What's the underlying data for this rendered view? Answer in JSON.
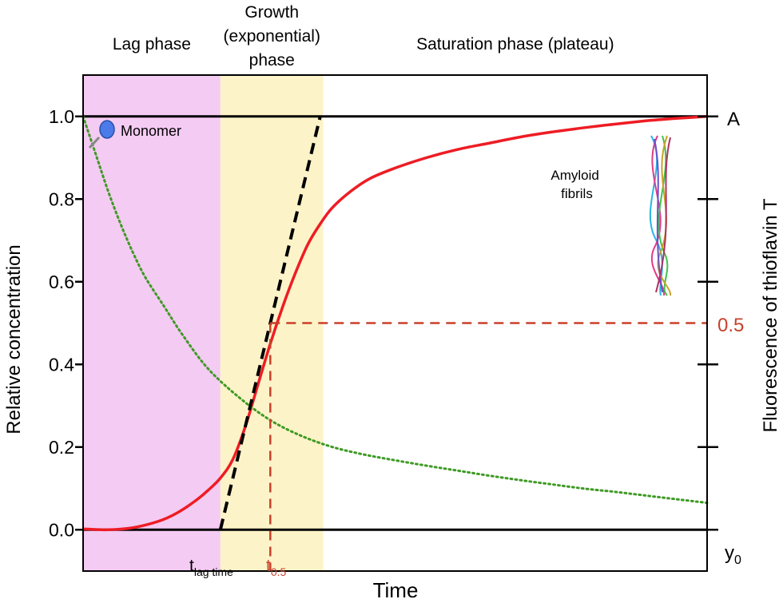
{
  "chart_data": {
    "type": "line",
    "phases": [
      {
        "name": "Lag phase",
        "lines": [
          "Lag phase"
        ],
        "x_range": [
          0.0,
          0.22
        ],
        "color": "#f4cbf3"
      },
      {
        "name": "Growth (exponential) phase",
        "lines": [
          "Growth",
          "(exponential)",
          "phase"
        ],
        "x_range": [
          0.22,
          0.385
        ],
        "color": "#fdf3c8"
      },
      {
        "name": "Saturation phase (plateau)",
        "lines": [
          "Saturation phase (plateau)"
        ],
        "x_range": [
          0.385,
          1.0
        ],
        "color": "#ffffff"
      }
    ],
    "xlabel": "Time",
    "ylabel": "Relative concentration",
    "ylabel_right": "Fluorescence of thioflavin T",
    "xlim": [
      0,
      1
    ],
    "ylim": [
      -0.1,
      1.1
    ],
    "yticks": [
      0.0,
      0.2,
      0.4,
      0.6,
      0.8,
      1.0
    ],
    "ytick_labels": [
      "0.0",
      "0.2",
      "0.4",
      "0.6",
      "0.8",
      "1.0"
    ],
    "right_tick_values": [
      0.0,
      0.2,
      0.4,
      0.6,
      0.8,
      1.0
    ],
    "right_labels": {
      "top": "A",
      "half": "0.5",
      "bottom_base": "y",
      "bottom_sub": "0"
    },
    "series": [
      {
        "name": "Amyloid fibrils",
        "style": "solid",
        "color": "#ee1c24",
        "x": [
          0.0,
          0.04,
          0.08,
          0.12,
          0.15,
          0.18,
          0.2,
          0.22,
          0.24,
          0.26,
          0.28,
          0.3,
          0.32,
          0.34,
          0.36,
          0.38,
          0.4,
          0.43,
          0.46,
          0.5,
          0.55,
          0.6,
          0.65,
          0.7,
          0.75,
          0.8,
          0.85,
          0.9,
          0.95,
          1.0
        ],
        "y": [
          0.002,
          0.0,
          0.005,
          0.02,
          0.04,
          0.07,
          0.095,
          0.125,
          0.17,
          0.25,
          0.35,
          0.45,
          0.54,
          0.62,
          0.69,
          0.74,
          0.78,
          0.82,
          0.85,
          0.875,
          0.9,
          0.92,
          0.935,
          0.95,
          0.962,
          0.972,
          0.981,
          0.989,
          0.995,
          1.0
        ]
      },
      {
        "name": "Monomer",
        "style": "dotted",
        "color": "#3f9a25",
        "x": [
          0.0,
          0.02,
          0.04,
          0.06,
          0.08,
          0.1,
          0.13,
          0.16,
          0.2,
          0.25,
          0.3,
          0.35,
          0.4,
          0.45,
          0.5,
          0.55,
          0.6,
          0.65,
          0.7,
          0.75,
          0.8,
          0.85,
          0.9,
          0.95,
          1.0
        ],
        "y": [
          1.0,
          0.91,
          0.82,
          0.74,
          0.67,
          0.61,
          0.54,
          0.47,
          0.39,
          0.32,
          0.265,
          0.227,
          0.2,
          0.182,
          0.168,
          0.155,
          0.143,
          0.131,
          0.12,
          0.11,
          0.1,
          0.092,
          0.083,
          0.074,
          0.065
        ]
      }
    ],
    "tangent": {
      "x": [
        0.22,
        0.38
      ],
      "y": [
        0.0,
        1.0
      ],
      "style": "dashed",
      "color": "#000000"
    },
    "half_marker": {
      "x": 0.3,
      "y": 0.5,
      "color": "#c8412a"
    },
    "hlines": [
      0.0,
      1.0
    ],
    "annotations": {
      "lag_time": {
        "base": "t",
        "sub": "lag time",
        "x": 0.22
      },
      "t_half": {
        "base": "t",
        "sub": "0.5",
        "x": 0.3
      },
      "monomer_label": "Monomer",
      "fibrils_label": [
        "Amyloid",
        "fibrils"
      ]
    },
    "grid": false,
    "legend": "none"
  }
}
